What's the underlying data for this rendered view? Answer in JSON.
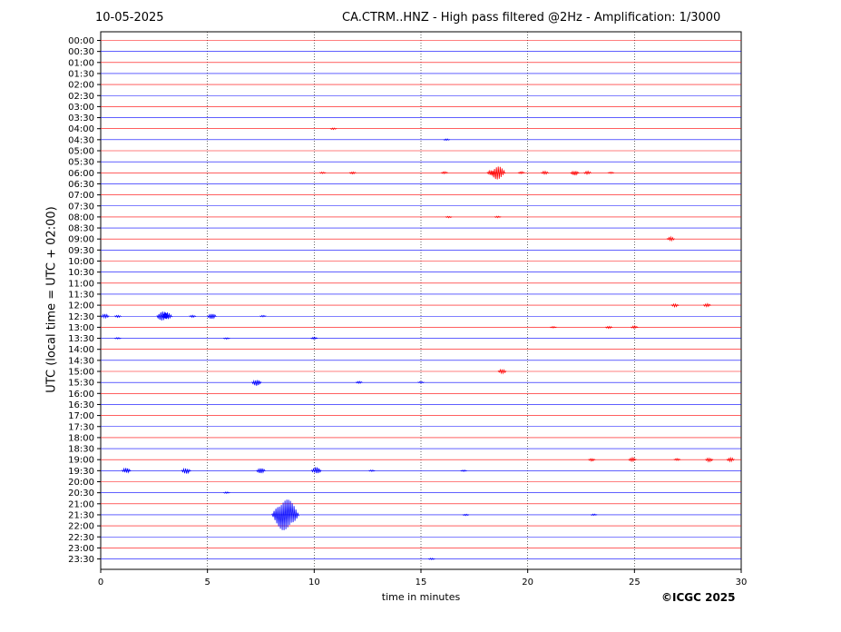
{
  "header": {
    "date": "10-05-2025",
    "title": "CA.CTRM..HNZ - High pass filtered @2Hz - Amplification: 1/3000"
  },
  "footer": {
    "copyright": "©ICGC 2025"
  },
  "chart_data": {
    "type": "line",
    "title": "CA.CTRM..HNZ - High pass filtered @2Hz - Amplification: 1/3000",
    "xlabel": "time in minutes",
    "ylabel": "UTC (local time = UTC + 02:00)",
    "xlim": [
      0,
      30
    ],
    "x_ticks": [
      0,
      5,
      10,
      15,
      20,
      25,
      30
    ],
    "x_gridlines": [
      5,
      10,
      15,
      20,
      25
    ],
    "y_tick_labels": [
      "00:00",
      "00:30",
      "01:00",
      "01:30",
      "02:00",
      "02:30",
      "03:00",
      "03:30",
      "04:00",
      "04:30",
      "05:00",
      "05:30",
      "06:00",
      "06:30",
      "07:00",
      "07:30",
      "08:00",
      "08:30",
      "09:00",
      "09:30",
      "10:00",
      "10:30",
      "11:00",
      "11:30",
      "12:00",
      "12:30",
      "13:00",
      "13:30",
      "14:00",
      "14:30",
      "15:00",
      "15:30",
      "16:00",
      "16:30",
      "17:00",
      "17:30",
      "18:00",
      "18:30",
      "19:00",
      "19:30",
      "20:00",
      "20:30",
      "21:00",
      "21:30",
      "22:00",
      "22:30",
      "23:00",
      "23:30"
    ],
    "trace_colors": [
      "#ff0000",
      "#0000ff"
    ],
    "events": [
      {
        "trace": "04:00",
        "minute": 10.9,
        "amplitude": 0.15
      },
      {
        "trace": "04:30",
        "minute": 16.2,
        "amplitude": 0.15
      },
      {
        "trace": "06:00",
        "minute": 10.4,
        "amplitude": 0.15
      },
      {
        "trace": "06:00",
        "minute": 11.8,
        "amplitude": 0.2
      },
      {
        "trace": "06:00",
        "minute": 16.1,
        "amplitude": 0.2
      },
      {
        "trace": "06:00",
        "minute": 18.3,
        "amplitude": 0.5
      },
      {
        "trace": "06:00",
        "minute": 18.6,
        "amplitude": 1.3
      },
      {
        "trace": "06:00",
        "minute": 19.7,
        "amplitude": 0.2
      },
      {
        "trace": "06:00",
        "minute": 20.8,
        "amplitude": 0.3
      },
      {
        "trace": "06:00",
        "minute": 22.2,
        "amplitude": 0.45
      },
      {
        "trace": "06:00",
        "minute": 22.8,
        "amplitude": 0.3
      },
      {
        "trace": "06:00",
        "minute": 23.9,
        "amplitude": 0.15
      },
      {
        "trace": "08:00",
        "minute": 16.3,
        "amplitude": 0.15
      },
      {
        "trace": "08:00",
        "minute": 18.6,
        "amplitude": 0.15
      },
      {
        "trace": "09:00",
        "minute": 26.7,
        "amplitude": 0.35
      },
      {
        "trace": "12:00",
        "minute": 26.9,
        "amplitude": 0.3
      },
      {
        "trace": "12:00",
        "minute": 28.4,
        "amplitude": 0.3
      },
      {
        "trace": "12:30",
        "minute": 0.2,
        "amplitude": 0.4
      },
      {
        "trace": "12:30",
        "minute": 0.8,
        "amplitude": 0.2
      },
      {
        "trace": "12:30",
        "minute": 2.9,
        "amplitude": 0.9
      },
      {
        "trace": "12:30",
        "minute": 3.1,
        "amplitude": 0.7
      },
      {
        "trace": "12:30",
        "minute": 4.3,
        "amplitude": 0.2
      },
      {
        "trace": "12:30",
        "minute": 5.2,
        "amplitude": 0.5
      },
      {
        "trace": "12:30",
        "minute": 7.6,
        "amplitude": 0.15
      },
      {
        "trace": "13:00",
        "minute": 21.2,
        "amplitude": 0.15
      },
      {
        "trace": "13:00",
        "minute": 23.8,
        "amplitude": 0.2
      },
      {
        "trace": "13:00",
        "minute": 25.0,
        "amplitude": 0.25
      },
      {
        "trace": "13:30",
        "minute": 0.8,
        "amplitude": 0.15
      },
      {
        "trace": "13:30",
        "minute": 5.9,
        "amplitude": 0.15
      },
      {
        "trace": "13:30",
        "minute": 10.0,
        "amplitude": 0.2
      },
      {
        "trace": "15:00",
        "minute": 18.8,
        "amplitude": 0.4
      },
      {
        "trace": "15:30",
        "minute": 7.3,
        "amplitude": 0.6
      },
      {
        "trace": "15:30",
        "minute": 12.1,
        "amplitude": 0.2
      },
      {
        "trace": "15:30",
        "minute": 15.0,
        "amplitude": 0.15
      },
      {
        "trace": "19:00",
        "minute": 23.0,
        "amplitude": 0.25
      },
      {
        "trace": "19:00",
        "minute": 24.9,
        "amplitude": 0.35
      },
      {
        "trace": "19:00",
        "minute": 27.0,
        "amplitude": 0.2
      },
      {
        "trace": "19:00",
        "minute": 28.5,
        "amplitude": 0.35
      },
      {
        "trace": "19:00",
        "minute": 29.5,
        "amplitude": 0.35
      },
      {
        "trace": "19:30",
        "minute": 1.2,
        "amplitude": 0.5
      },
      {
        "trace": "19:30",
        "minute": 4.0,
        "amplitude": 0.55
      },
      {
        "trace": "19:30",
        "minute": 7.5,
        "amplitude": 0.5
      },
      {
        "trace": "19:30",
        "minute": 10.1,
        "amplitude": 0.65
      },
      {
        "trace": "19:30",
        "minute": 12.7,
        "amplitude": 0.15
      },
      {
        "trace": "19:30",
        "minute": 17.0,
        "amplitude": 0.15
      },
      {
        "trace": "20:30",
        "minute": 5.9,
        "amplitude": 0.15
      },
      {
        "trace": "21:30",
        "minute": 8.65,
        "amplitude": 3.0
      },
      {
        "trace": "21:30",
        "minute": 17.1,
        "amplitude": 0.15
      },
      {
        "trace": "21:30",
        "minute": 23.1,
        "amplitude": 0.15
      },
      {
        "trace": "23:30",
        "minute": 15.5,
        "amplitude": 0.15
      }
    ]
  }
}
